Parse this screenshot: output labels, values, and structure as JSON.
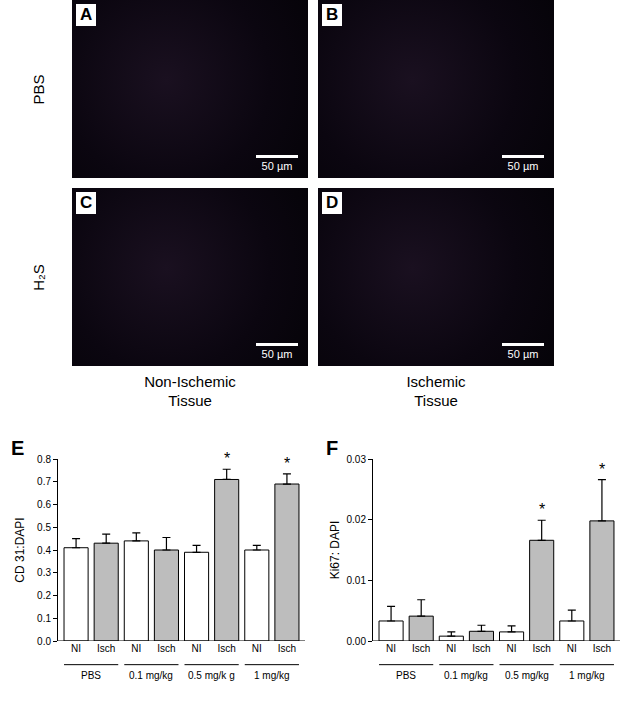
{
  "micrographs": {
    "row_labels": [
      "PBS",
      "H₂S"
    ],
    "column_labels": [
      "Non-Ischemic\nTissue",
      "Ischemic\nTissue"
    ],
    "panels": [
      {
        "label": "A",
        "scale_bar": "50 µm"
      },
      {
        "label": "B",
        "scale_bar": "50 µm"
      },
      {
        "label": "C",
        "scale_bar": "50 µm"
      },
      {
        "label": "D",
        "scale_bar": "50 µm"
      }
    ]
  },
  "chart_data": [
    {
      "type": "bar",
      "panel_label": "E",
      "y_label": "CD 31:DAPI",
      "categories": [
        "NI",
        "Isch",
        "NI",
        "Isch",
        "NI",
        "Isch",
        "NI",
        "Isch"
      ],
      "group_labels": [
        "PBS",
        "0.1 mg/kg",
        "0.5 mg/k g",
        "1 mg/kg"
      ],
      "values": [
        0.41,
        0.43,
        0.44,
        0.4,
        0.39,
        0.71,
        0.4,
        0.69
      ],
      "errors": [
        0.04,
        0.04,
        0.035,
        0.055,
        0.03,
        0.045,
        0.02,
        0.045
      ],
      "colors": [
        "#ffffff",
        "#bdbdbd",
        "#ffffff",
        "#bdbdbd",
        "#ffffff",
        "#bdbdbd",
        "#ffffff",
        "#bdbdbd"
      ],
      "annotations": [
        {
          "text": "*",
          "index": 5
        },
        {
          "text": "*",
          "index": 7
        }
      ],
      "ylim": [
        0,
        0.8
      ],
      "yticks": [
        {
          "value": 0,
          "label": "0.0"
        },
        0.1,
        0.2,
        0.3,
        0.4,
        0.5,
        0.6,
        0.7,
        0.8
      ],
      "grid": false
    },
    {
      "type": "bar",
      "panel_label": "F",
      "y_label": "Ki67: DAPI",
      "categories": [
        "NI",
        "Isch",
        "NI",
        "Isch",
        "NI",
        "Isch",
        "NI",
        "Isch"
      ],
      "group_labels": [
        "PBS",
        "0.1 mg/kg",
        "0.5 mg/kg",
        "1 mg/kg"
      ],
      "values": [
        0.0033,
        0.0041,
        0.0008,
        0.0016,
        0.0015,
        0.0166,
        0.0033,
        0.0198
      ],
      "errors": [
        0.0024,
        0.0027,
        0.0007,
        0.001,
        0.001,
        0.0033,
        0.0018,
        0.0068
      ],
      "colors": [
        "#ffffff",
        "#bdbdbd",
        "#ffffff",
        "#bdbdbd",
        "#ffffff",
        "#bdbdbd",
        "#ffffff",
        "#bdbdbd"
      ],
      "annotations": [
        {
          "text": "*",
          "index": 5
        },
        {
          "text": "*",
          "index": 7
        }
      ],
      "ylim": [
        0,
        0.03
      ],
      "yticks": [
        {
          "value": 0,
          "label": "0.00"
        },
        0.01,
        0.02,
        0.03
      ],
      "grid": false
    }
  ]
}
